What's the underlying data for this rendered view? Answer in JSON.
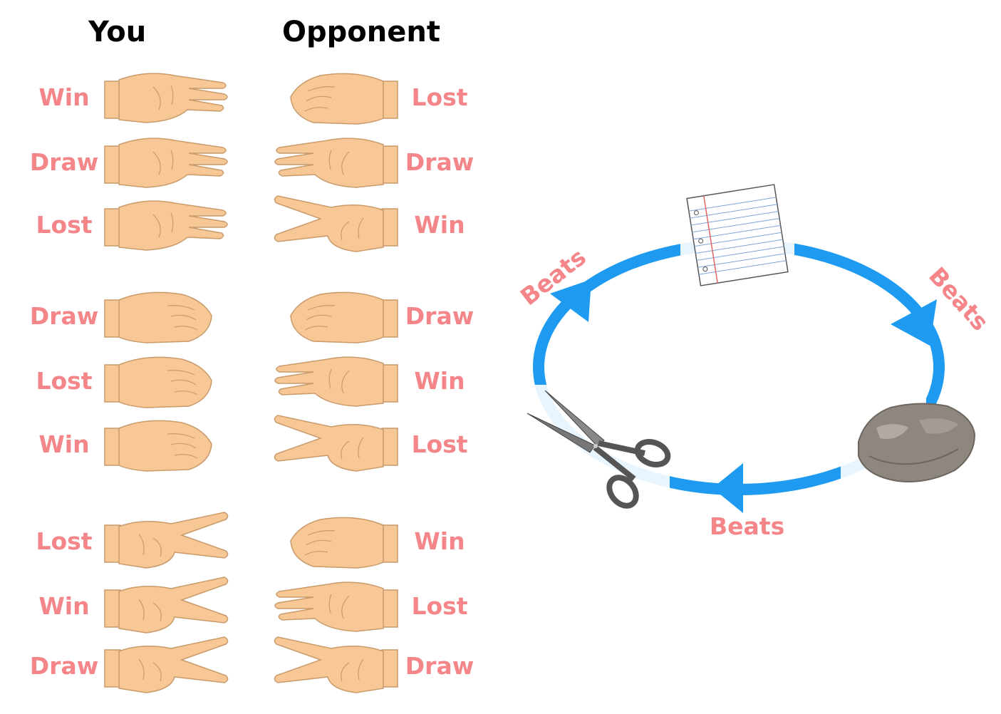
{
  "headers": {
    "you": "You",
    "opponent": "Opponent"
  },
  "rows": [
    {
      "you_result": "Win",
      "you_hand": "paper",
      "opp_hand": "rock",
      "opp_result": "Lost"
    },
    {
      "you_result": "Draw",
      "you_hand": "paper",
      "opp_hand": "paper",
      "opp_result": "Draw"
    },
    {
      "you_result": "Lost",
      "you_hand": "paper",
      "opp_hand": "scissors",
      "opp_result": "Win"
    },
    {
      "you_result": "Draw",
      "you_hand": "rock",
      "opp_hand": "rock",
      "opp_result": "Draw"
    },
    {
      "you_result": "Lost",
      "you_hand": "rock",
      "opp_hand": "paper",
      "opp_result": "Win"
    },
    {
      "you_result": "Win",
      "you_hand": "rock",
      "opp_hand": "scissors",
      "opp_result": "Lost"
    },
    {
      "you_result": "Lost",
      "you_hand": "scissors",
      "opp_hand": "rock",
      "opp_result": "Win"
    },
    {
      "you_result": "Win",
      "you_hand": "scissors",
      "opp_hand": "paper",
      "opp_result": "Lost"
    },
    {
      "you_result": "Draw",
      "you_hand": "scissors",
      "opp_hand": "scissors",
      "opp_result": "Draw"
    }
  ],
  "cycle": {
    "labels": {
      "paper_rock": "Beats",
      "rock_scissors": "Beats",
      "scissors_paper": "Beats"
    },
    "items": [
      "paper-icon",
      "rock-icon",
      "scissors-icon"
    ]
  },
  "colors": {
    "label": "#f4868a",
    "arrow": "#1e9bf0",
    "skin": "#f7c896",
    "skin_line": "#c99a6a"
  }
}
